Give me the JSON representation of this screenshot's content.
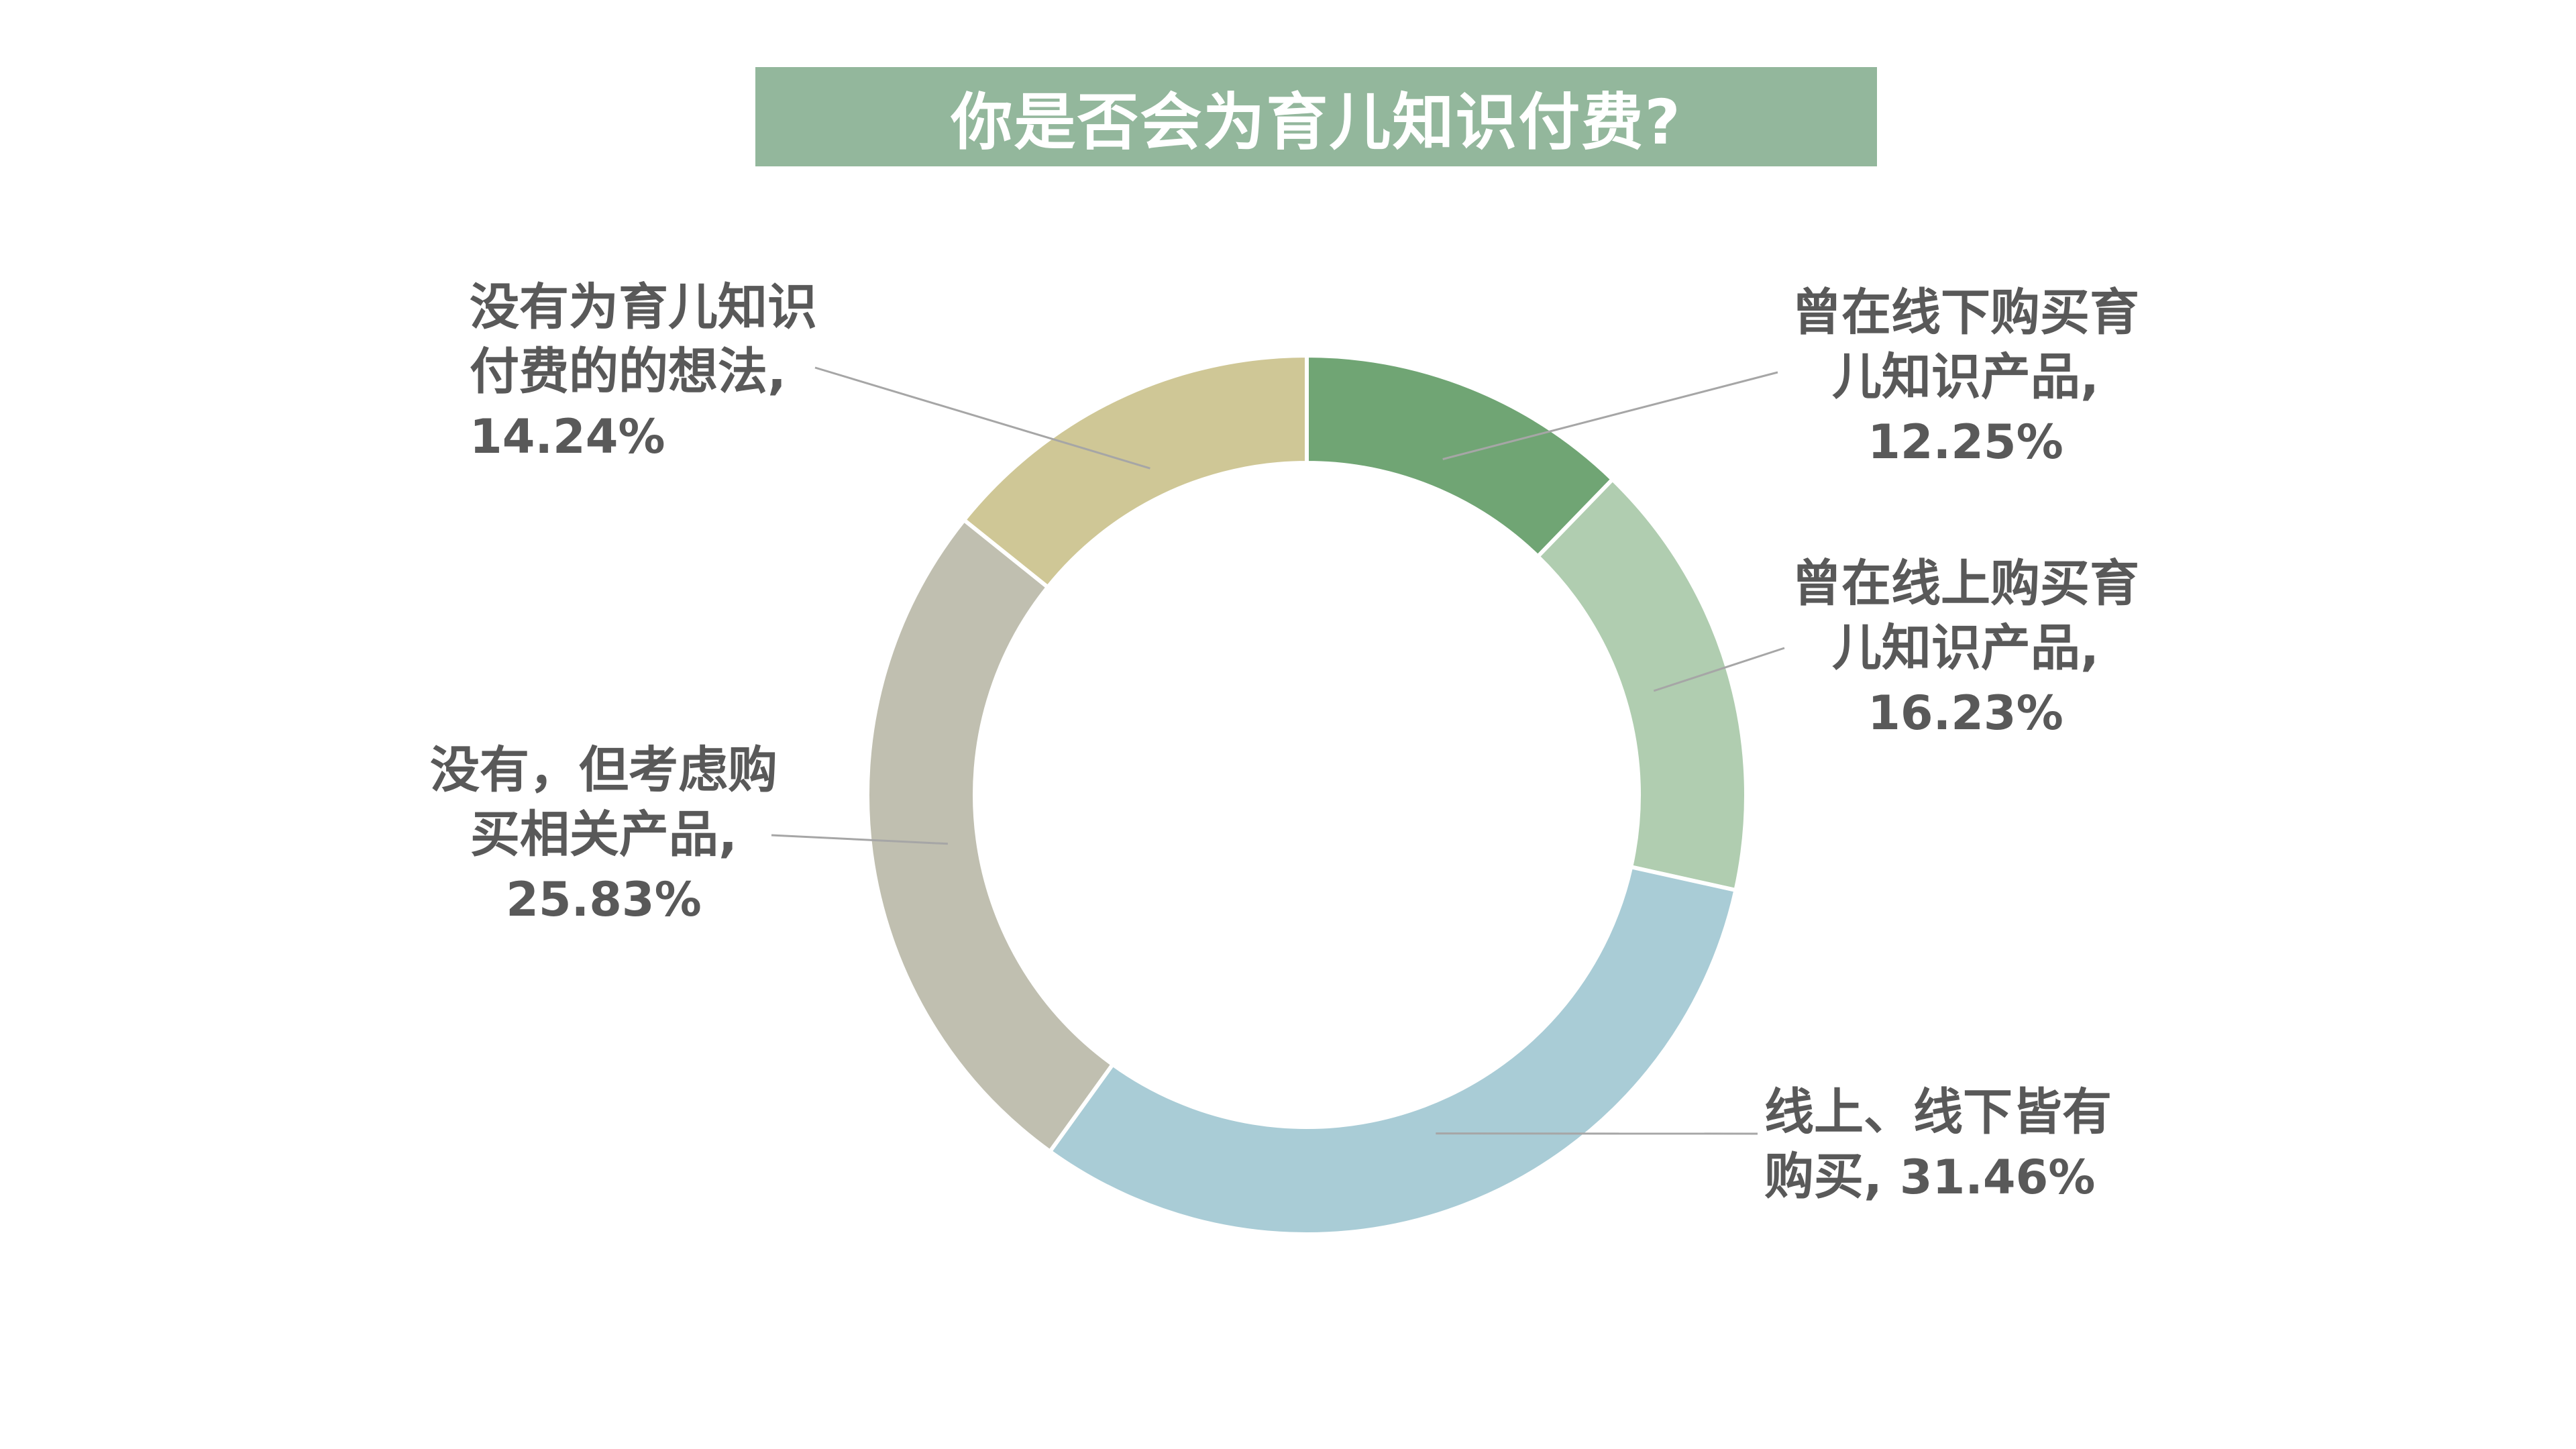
{
  "title": "你是否会为育儿知识付费?",
  "colors": {
    "title_bg": "#93b79c",
    "title_text": "#ffffff",
    "label_text": "#595959",
    "leader_line": "#a6a6a6"
  },
  "chart_data": {
    "type": "pie",
    "donut": true,
    "legend": "none",
    "slices": [
      {
        "label": "曾在线下购买育儿知识产品",
        "value": 12.25,
        "value_text": "12.25%",
        "color": "#70a574"
      },
      {
        "label": "曾在线上购买育儿知识产品",
        "value": 16.23,
        "value_text": "16.23%",
        "color": "#b0cdb0"
      },
      {
        "label": "线上、线下皆有购买",
        "value": 31.46,
        "value_text": "31.46%",
        "color": "#a9ccd6"
      },
      {
        "label": "没有，但考虑购买相关产品",
        "value": 25.83,
        "value_text": "25.83%",
        "color": "#c0bfb0"
      },
      {
        "label": "没有为育儿知识付费的的想法",
        "value": 14.24,
        "value_text": "14.24%",
        "color": "#cfc796"
      }
    ]
  }
}
